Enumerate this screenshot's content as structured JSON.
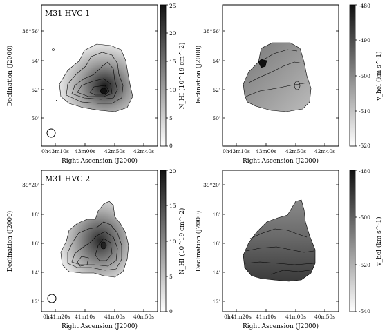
{
  "axis_labels": {
    "x": "Right Ascension (J2000)",
    "y": "Declination (J2000)"
  },
  "colorbar_labels": {
    "nhi_top": "N_HI (10^19 cm^-2)",
    "nhi_bottom": "N_HI (10^19 cm^-2)",
    "vhel_top": "v_hel (km s^-1)",
    "vhel_bottom": "v_hel (km s^-1)"
  },
  "panels": [
    {
      "id": "top-left",
      "title": "M31 HVC 1",
      "yticks": [
        "38°56'",
        "54'",
        "52'",
        "50'"
      ],
      "xticks": [
        "0h43m10s",
        "43m00s",
        "42m50s",
        "42m40s"
      ],
      "colorbar": {
        "min": 0,
        "max": 25,
        "ticks": [
          "25",
          "20",
          "15",
          "10",
          "5",
          "0"
        ],
        "gradient": "dark-top"
      }
    },
    {
      "id": "top-right",
      "title": "",
      "yticks": [
        "38°56'",
        "54'",
        "52'",
        "50'"
      ],
      "xticks": [
        "0h43m10s",
        "43m00s",
        "42m50s",
        "42m40s"
      ],
      "colorbar": {
        "min": -520,
        "max": -480,
        "ticks": [
          "-480",
          "-490",
          "-500",
          "-510",
          "-520"
        ],
        "gradient": "dark-top"
      }
    },
    {
      "id": "bottom-left",
      "title": "M31 HVC 2",
      "yticks": [
        "39°20'",
        "18'",
        "16'",
        "14'",
        "12'"
      ],
      "xticks": [
        "0h41m20s",
        "41m10s",
        "41m00s",
        "40m50s"
      ],
      "colorbar": {
        "min": 0,
        "max": 20,
        "ticks": [
          "20",
          "15",
          "10",
          "5",
          "0"
        ],
        "gradient": "dark-top"
      }
    },
    {
      "id": "bottom-right",
      "title": "",
      "yticks": [
        "39°20'",
        "18'",
        "16'",
        "14'",
        "12'"
      ],
      "xticks": [
        "0h41m20s",
        "41m10s",
        "41m00s",
        "40m50s"
      ],
      "colorbar": {
        "min": -540,
        "max": -480,
        "ticks": [
          "-480",
          "-500",
          "-520",
          "-540"
        ],
        "gradient": "dark-top"
      }
    }
  ]
}
